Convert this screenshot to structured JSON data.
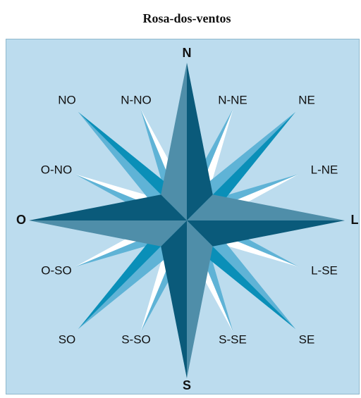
{
  "title": "Rosa-dos-ventos",
  "points": [
    {
      "label": "N",
      "bold": true
    },
    {
      "label": "N-NE",
      "bold": false
    },
    {
      "label": "NE",
      "bold": false
    },
    {
      "label": "L-NE",
      "bold": false
    },
    {
      "label": "L",
      "bold": true
    },
    {
      "label": "L-SE",
      "bold": false
    },
    {
      "label": "SE",
      "bold": false
    },
    {
      "label": "S-SE",
      "bold": false
    },
    {
      "label": "S",
      "bold": true
    },
    {
      "label": "S-SO",
      "bold": false
    },
    {
      "label": "SO",
      "bold": false
    },
    {
      "label": "O-SO",
      "bold": false
    },
    {
      "label": "O",
      "bold": true
    },
    {
      "label": "O-NO",
      "bold": false
    },
    {
      "label": "NO",
      "bold": false
    },
    {
      "label": "N-NO",
      "bold": false
    }
  ]
}
